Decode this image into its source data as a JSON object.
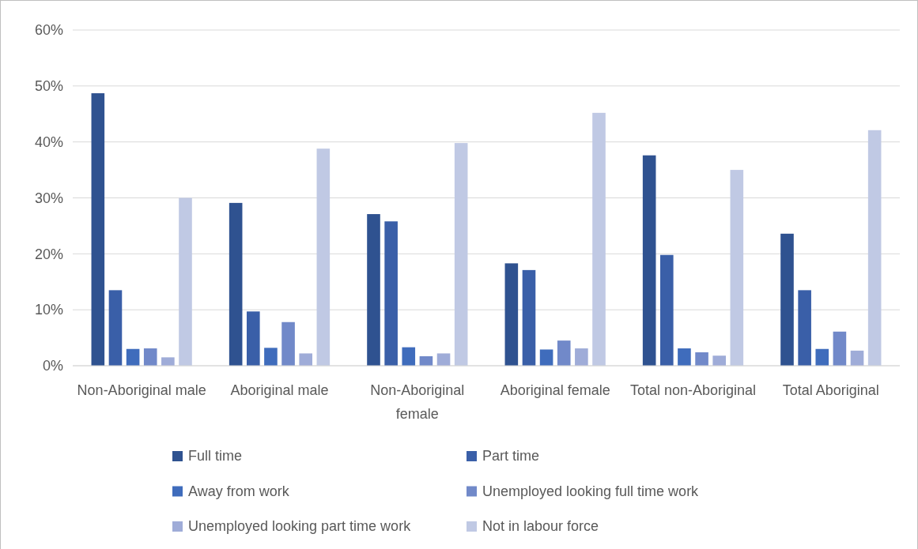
{
  "chart_data": {
    "type": "bar",
    "categories": [
      "Non-Aboriginal male",
      "Aboriginal male",
      "Non-Aboriginal female",
      "Aboriginal female",
      "Total non-Aboriginal",
      "Total Aboriginal"
    ],
    "series": [
      {
        "name": "Full time",
        "color": "#2f5290",
        "values": [
          48.7,
          29.1,
          27.1,
          18.3,
          37.6,
          23.6
        ]
      },
      {
        "name": "Part time",
        "color": "#3a5fa8",
        "values": [
          13.5,
          9.7,
          25.8,
          17.1,
          19.8,
          13.5
        ]
      },
      {
        "name": "Away from work",
        "color": "#3f6cbc",
        "values": [
          3.0,
          3.2,
          3.3,
          2.9,
          3.1,
          3.0
        ]
      },
      {
        "name": "Unemployed looking full time work",
        "color": "#7189c9",
        "values": [
          3.1,
          7.8,
          1.7,
          4.5,
          2.4,
          6.1
        ]
      },
      {
        "name": "Unemployed looking part time work",
        "color": "#9facd8",
        "values": [
          1.5,
          2.2,
          2.2,
          3.1,
          1.8,
          2.7
        ]
      },
      {
        "name": "Not in labour force",
        "color": "#c0c9e4",
        "values": [
          30.0,
          38.8,
          39.8,
          45.2,
          35.0,
          42.1
        ]
      }
    ],
    "ylim": [
      0,
      60
    ],
    "yticks": [
      {
        "value": 0,
        "label": "0%"
      },
      {
        "value": 10,
        "label": "10%"
      },
      {
        "value": 20,
        "label": "20%"
      },
      {
        "value": 30,
        "label": "30%"
      },
      {
        "value": 40,
        "label": "40%"
      },
      {
        "value": 50,
        "label": "50%"
      },
      {
        "value": 60,
        "label": "60%"
      }
    ],
    "grid": "y",
    "legend": "bottom"
  }
}
